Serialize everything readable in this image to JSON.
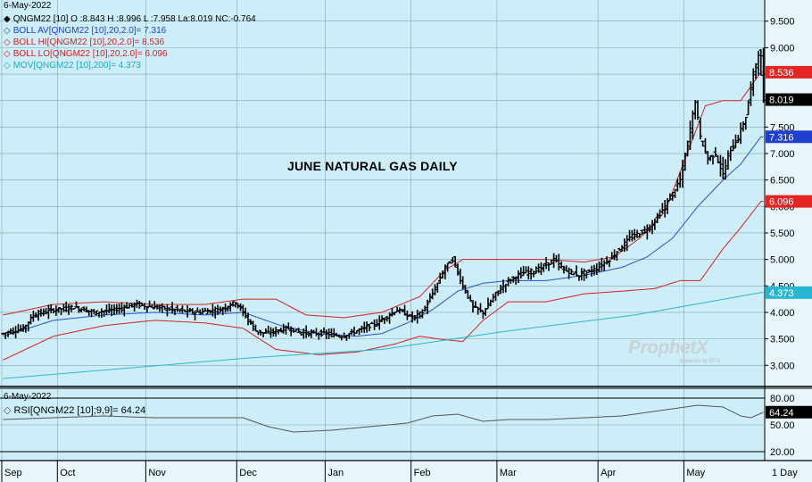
{
  "header": {
    "date": "6-May-2022",
    "legend": [
      {
        "text": "QNGM22 [10] O :8.843 H :8.996 L :7.958 La:8.019 NC:-0.764",
        "color": "#000000",
        "icon": "filled-diamond-icon"
      },
      {
        "text": "BOLL AV[QNGM22 [10],20,2.0]= 7.316",
        "color": "#1f3fd1",
        "icon": "diamond-outline-icon"
      },
      {
        "text": "BOLL HI[QNGM22 [10],20,2.0]= 8.536",
        "color": "#d42020",
        "icon": "diamond-outline-icon"
      },
      {
        "text": "BOLL LO[QNGM22 [10],20,2.0]= 6.096",
        "color": "#d42020",
        "icon": "diamond-outline-icon"
      },
      {
        "text": "MOV[QNGM22 [10],200]= 4.373",
        "color": "#1aa9c6",
        "icon": "diamond-outline-icon"
      }
    ]
  },
  "title": "JUNE NATURAL GAS DAILY",
  "watermark": "ProphetX",
  "watermark_sub": "powered by DTN",
  "rsi": {
    "date": "6-May-2022",
    "label": "RSI[QNGM22 [10];9,9]= 64.24",
    "value": 64.24,
    "ticks": [
      "80.00",
      "50.00",
      "20.00"
    ]
  },
  "period_label": "1 Day",
  "chart_data": [
    {
      "type": "line",
      "subtype": "ohlc-bar",
      "title": "JUNE NATURAL GAS DAILY",
      "x_labels": [
        "Sep",
        "Oct",
        "Nov",
        "Dec",
        "Jan",
        "Feb",
        "Mar",
        "Apr",
        "May"
      ],
      "y_ticks": [
        "9.500",
        "9.000",
        "8.500",
        "8.000",
        "7.500",
        "7.000",
        "6.500",
        "6.000",
        "5.500",
        "5.000",
        "4.500",
        "4.000",
        "3.500",
        "3.000"
      ],
      "ylim": [
        2.6,
        9.9
      ],
      "price_keypoints": [
        [
          0,
          3.6
        ],
        [
          8,
          3.7
        ],
        [
          12,
          3.95
        ],
        [
          20,
          4.05
        ],
        [
          28,
          4.1
        ],
        [
          36,
          4.0
        ],
        [
          44,
          4.05
        ],
        [
          52,
          4.15
        ],
        [
          60,
          4.1
        ],
        [
          68,
          4.05
        ],
        [
          76,
          4.0
        ],
        [
          86,
          4.05
        ],
        [
          92,
          4.2
        ],
        [
          95,
          4.0
        ],
        [
          100,
          3.65
        ],
        [
          104,
          3.6
        ],
        [
          112,
          3.7
        ],
        [
          120,
          3.6
        ],
        [
          128,
          3.6
        ],
        [
          134,
          3.55
        ],
        [
          140,
          3.65
        ],
        [
          148,
          3.8
        ],
        [
          156,
          4.05
        ],
        [
          162,
          3.9
        ],
        [
          166,
          4.0
        ],
        [
          170,
          4.35
        ],
        [
          175,
          4.85
        ],
        [
          178,
          5.0
        ],
        [
          182,
          4.5
        ],
        [
          186,
          4.1
        ],
        [
          190,
          4.0
        ],
        [
          195,
          4.35
        ],
        [
          200,
          4.6
        ],
        [
          206,
          4.75
        ],
        [
          212,
          4.8
        ],
        [
          218,
          5.0
        ],
        [
          222,
          4.8
        ],
        [
          228,
          4.7
        ],
        [
          234,
          4.8
        ],
        [
          240,
          5.0
        ],
        [
          248,
          5.4
        ],
        [
          256,
          5.6
        ],
        [
          262,
          6.0
        ],
        [
          268,
          6.5
        ],
        [
          271,
          7.2
        ],
        [
          274,
          8.0
        ],
        [
          276,
          7.3
        ],
        [
          279,
          6.9
        ],
        [
          282,
          7.0
        ],
        [
          285,
          6.6
        ],
        [
          288,
          7.1
        ],
        [
          291,
          7.3
        ],
        [
          294,
          7.7
        ],
        [
          297,
          8.5
        ],
        [
          299,
          8.9
        ],
        [
          301,
          8.0
        ]
      ],
      "series": [
        {
          "name": "QNGM22 [10]",
          "color": "#000000",
          "last": 8.019,
          "open": 8.843,
          "high": 8.996,
          "low": 7.958
        },
        {
          "name": "BOLL AV[QNGM22 [10],20,2.0]",
          "color": "#2b4fd8",
          "last": 7.316,
          "keypoints": [
            [
              0,
              3.55
            ],
            [
              20,
              3.85
            ],
            [
              40,
              3.95
            ],
            [
              60,
              4.0
            ],
            [
              80,
              3.95
            ],
            [
              95,
              4.0
            ],
            [
              110,
              3.75
            ],
            [
              125,
              3.6
            ],
            [
              140,
              3.55
            ],
            [
              150,
              3.6
            ],
            [
              160,
              3.8
            ],
            [
              170,
              4.05
            ],
            [
              180,
              4.4
            ],
            [
              190,
              4.55
            ],
            [
              200,
              4.6
            ],
            [
              215,
              4.6
            ],
            [
              230,
              4.7
            ],
            [
              245,
              4.85
            ],
            [
              255,
              5.05
            ],
            [
              265,
              5.4
            ],
            [
              275,
              6.0
            ],
            [
              285,
              6.5
            ],
            [
              292,
              6.8
            ],
            [
              300,
              7.316
            ]
          ]
        },
        {
          "name": "BOLL HI[QNGM22 [10],20,2.0]",
          "color": "#d42020",
          "last": 8.536,
          "keypoints": [
            [
              0,
              3.95
            ],
            [
              20,
              4.15
            ],
            [
              40,
              4.2
            ],
            [
              60,
              4.15
            ],
            [
              80,
              4.15
            ],
            [
              95,
              4.25
            ],
            [
              108,
              4.25
            ],
            [
              120,
              3.95
            ],
            [
              135,
              3.9
            ],
            [
              150,
              4.0
            ],
            [
              165,
              4.3
            ],
            [
              175,
              4.8
            ],
            [
              182,
              5.0
            ],
            [
              200,
              5.0
            ],
            [
              215,
              5.0
            ],
            [
              230,
              4.95
            ],
            [
              242,
              5.05
            ],
            [
              252,
              5.4
            ],
            [
              262,
              5.9
            ],
            [
              270,
              6.9
            ],
            [
              278,
              7.9
            ],
            [
              285,
              8.0
            ],
            [
              292,
              8.0
            ],
            [
              300,
              8.536
            ]
          ]
        },
        {
          "name": "BOLL LO[QNGM22 [10],20,2.0]",
          "color": "#d42020",
          "last": 6.096,
          "keypoints": [
            [
              0,
              3.1
            ],
            [
              20,
              3.55
            ],
            [
              40,
              3.75
            ],
            [
              60,
              3.85
            ],
            [
              80,
              3.8
            ],
            [
              95,
              3.7
            ],
            [
              108,
              3.3
            ],
            [
              125,
              3.2
            ],
            [
              140,
              3.25
            ],
            [
              155,
              3.4
            ],
            [
              165,
              3.55
            ],
            [
              172,
              3.5
            ],
            [
              182,
              3.45
            ],
            [
              190,
              3.85
            ],
            [
              200,
              4.2
            ],
            [
              215,
              4.2
            ],
            [
              230,
              4.35
            ],
            [
              245,
              4.4
            ],
            [
              258,
              4.45
            ],
            [
              268,
              4.6
            ],
            [
              276,
              4.6
            ],
            [
              285,
              5.2
            ],
            [
              292,
              5.6
            ],
            [
              300,
              6.096
            ]
          ]
        },
        {
          "name": "MOV[QNGM22 [10],200]",
          "color": "#29b6d3",
          "last": 4.373,
          "keypoints": [
            [
              0,
              2.75
            ],
            [
              50,
              2.95
            ],
            [
              100,
              3.15
            ],
            [
              150,
              3.3
            ],
            [
              200,
              3.65
            ],
            [
              250,
              3.95
            ],
            [
              300,
              4.373
            ]
          ]
        }
      ],
      "price_tags": [
        {
          "value": "8.536",
          "bg": "#e52424",
          "fg": "#ffffff"
        },
        {
          "value": "8.019",
          "bg": "#000000",
          "fg": "#ffffff"
        },
        {
          "value": "7.316",
          "bg": "#1f3fd1",
          "fg": "#ffffff"
        },
        {
          "value": "6.096",
          "bg": "#e52424",
          "fg": "#ffffff"
        },
        {
          "value": "4.373",
          "bg": "#29b6d3",
          "fg": "#ffffff"
        }
      ]
    },
    {
      "type": "line",
      "title": "",
      "label": "RSI[QNGM22 [10];9,9]= 64.24",
      "ylim": [
        10,
        90
      ],
      "y_ticks": [
        80,
        50,
        20
      ],
      "series": [
        {
          "name": "RSI",
          "color": "#555555",
          "keypoints": [
            [
              0,
              56
            ],
            [
              20,
              58
            ],
            [
              40,
              60
            ],
            [
              60,
              58
            ],
            [
              80,
              58
            ],
            [
              95,
              58
            ],
            [
              105,
              48
            ],
            [
              115,
              42
            ],
            [
              130,
              44
            ],
            [
              145,
              48
            ],
            [
              160,
              52
            ],
            [
              170,
              60
            ],
            [
              180,
              62
            ],
            [
              190,
              54
            ],
            [
              200,
              56
            ],
            [
              215,
              56
            ],
            [
              230,
              58
            ],
            [
              245,
              60
            ],
            [
              260,
              66
            ],
            [
              275,
              72
            ],
            [
              285,
              70
            ],
            [
              292,
              60
            ],
            [
              296,
              58
            ],
            [
              301,
              64.24
            ]
          ]
        }
      ]
    }
  ]
}
